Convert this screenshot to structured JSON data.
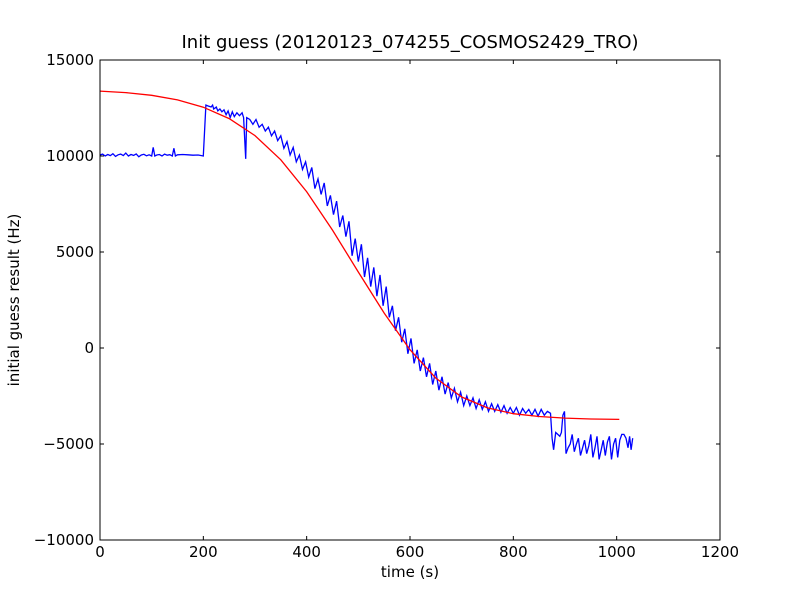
{
  "chart_data": {
    "type": "line",
    "title": "Init guess (20120123_074255_COSMOS2429_TRO)",
    "xlabel": "time (s)",
    "ylabel": "initial guess result (Hz)",
    "xlim": [
      0,
      1200
    ],
    "ylim": [
      -10000,
      15000
    ],
    "xticks": [
      0,
      200,
      400,
      600,
      800,
      1000,
      1200
    ],
    "yticks": [
      -10000,
      -5000,
      0,
      5000,
      10000,
      15000
    ],
    "xtick_labels": [
      "0",
      "200",
      "400",
      "600",
      "800",
      "1000",
      "1200"
    ],
    "ytick_labels": [
      "−10000",
      "−5000",
      "0",
      "5000",
      "10000",
      "15000"
    ],
    "grid": false,
    "series": [
      {
        "color": "#0000ff",
        "points": [
          [
            0,
            10050
          ],
          [
            5,
            10100
          ],
          [
            10,
            10000
          ],
          [
            15,
            10080
          ],
          [
            20,
            10020
          ],
          [
            25,
            10120
          ],
          [
            30,
            9980
          ],
          [
            35,
            10060
          ],
          [
            40,
            10100
          ],
          [
            45,
            10020
          ],
          [
            50,
            10150
          ],
          [
            55,
            10000
          ],
          [
            60,
            10080
          ],
          [
            65,
            10030
          ],
          [
            70,
            10110
          ],
          [
            75,
            9960
          ],
          [
            80,
            10050
          ],
          [
            85,
            10090
          ],
          [
            90,
            10010
          ],
          [
            95,
            10060
          ],
          [
            100,
            10000
          ],
          [
            103,
            10450
          ],
          [
            106,
            10000
          ],
          [
            110,
            10050
          ],
          [
            115,
            10080
          ],
          [
            120,
            10000
          ],
          [
            125,
            10100
          ],
          [
            130,
            10040
          ],
          [
            135,
            10070
          ],
          [
            140,
            10000
          ],
          [
            143,
            10400
          ],
          [
            146,
            10000
          ],
          [
            150,
            10060
          ],
          [
            160,
            10080
          ],
          [
            170,
            10060
          ],
          [
            180,
            10040
          ],
          [
            190,
            10050
          ],
          [
            200,
            10000
          ],
          [
            205,
            12650
          ],
          [
            210,
            12600
          ],
          [
            215,
            12550
          ],
          [
            218,
            12650
          ],
          [
            220,
            12450
          ],
          [
            225,
            12550
          ],
          [
            228,
            12350
          ],
          [
            232,
            12450
          ],
          [
            236,
            12300
          ],
          [
            240,
            12400
          ],
          [
            244,
            12150
          ],
          [
            248,
            12350
          ],
          [
            252,
            12000
          ],
          [
            256,
            12300
          ],
          [
            260,
            12050
          ],
          [
            265,
            12250
          ],
          [
            270,
            12100
          ],
          [
            275,
            12250
          ],
          [
            278,
            12000
          ],
          [
            282,
            9850
          ],
          [
            284,
            12000
          ],
          [
            290,
            11900
          ],
          [
            296,
            11650
          ],
          [
            302,
            11900
          ],
          [
            308,
            11500
          ],
          [
            314,
            11650
          ],
          [
            320,
            11300
          ],
          [
            326,
            11500
          ],
          [
            332,
            11050
          ],
          [
            338,
            11300
          ],
          [
            344,
            10800
          ],
          [
            350,
            11050
          ],
          [
            356,
            10400
          ],
          [
            362,
            10750
          ],
          [
            368,
            10050
          ],
          [
            374,
            10450
          ],
          [
            380,
            9700
          ],
          [
            386,
            10050
          ],
          [
            392,
            9300
          ],
          [
            398,
            9700
          ],
          [
            404,
            8900
          ],
          [
            410,
            9400
          ],
          [
            416,
            8300
          ],
          [
            422,
            8800
          ],
          [
            428,
            8000
          ],
          [
            434,
            8600
          ],
          [
            440,
            7400
          ],
          [
            446,
            7950
          ],
          [
            452,
            6950
          ],
          [
            458,
            7650
          ],
          [
            464,
            6300
          ],
          [
            470,
            6900
          ],
          [
            476,
            5800
          ],
          [
            482,
            6600
          ],
          [
            488,
            4800
          ],
          [
            494,
            5700
          ],
          [
            500,
            4500
          ],
          [
            506,
            5400
          ],
          [
            512,
            3700
          ],
          [
            518,
            4700
          ],
          [
            524,
            3200
          ],
          [
            530,
            4200
          ],
          [
            536,
            2700
          ],
          [
            542,
            3800
          ],
          [
            548,
            2200
          ],
          [
            554,
            3200
          ],
          [
            560,
            1600
          ],
          [
            566,
            2200
          ],
          [
            572,
            900
          ],
          [
            578,
            1600
          ],
          [
            584,
            300
          ],
          [
            590,
            1000
          ],
          [
            596,
            -300
          ],
          [
            602,
            500
          ],
          [
            608,
            -800
          ],
          [
            614,
            -100
          ],
          [
            620,
            -1200
          ],
          [
            626,
            -500
          ],
          [
            632,
            -1500
          ],
          [
            638,
            -800
          ],
          [
            644,
            -1900
          ],
          [
            650,
            -1200
          ],
          [
            656,
            -2200
          ],
          [
            662,
            -1500
          ],
          [
            668,
            -2400
          ],
          [
            674,
            -1800
          ],
          [
            680,
            -2600
          ],
          [
            686,
            -2100
          ],
          [
            692,
            -2800
          ],
          [
            698,
            -2300
          ],
          [
            704,
            -3000
          ],
          [
            710,
            -2500
          ],
          [
            716,
            -3000
          ],
          [
            722,
            -2600
          ],
          [
            728,
            -3150
          ],
          [
            734,
            -2700
          ],
          [
            740,
            -3200
          ],
          [
            746,
            -2800
          ],
          [
            752,
            -3300
          ],
          [
            758,
            -2900
          ],
          [
            764,
            -3300
          ],
          [
            770,
            -2950
          ],
          [
            776,
            -3350
          ],
          [
            782,
            -3000
          ],
          [
            788,
            -3400
          ],
          [
            794,
            -3100
          ],
          [
            800,
            -3400
          ],
          [
            806,
            -3100
          ],
          [
            812,
            -3500
          ],
          [
            818,
            -3150
          ],
          [
            824,
            -3400
          ],
          [
            830,
            -3200
          ],
          [
            836,
            -3500
          ],
          [
            842,
            -3200
          ],
          [
            848,
            -3550
          ],
          [
            854,
            -3200
          ],
          [
            860,
            -3500
          ],
          [
            866,
            -3300
          ],
          [
            872,
            -3400
          ],
          [
            875,
            -4700
          ],
          [
            878,
            -5300
          ],
          [
            882,
            -4400
          ],
          [
            886,
            -4500
          ],
          [
            890,
            -4600
          ],
          [
            893,
            -4400
          ],
          [
            896,
            -3500
          ],
          [
            899,
            -3300
          ],
          [
            902,
            -5500
          ],
          [
            906,
            -5200
          ],
          [
            910,
            -5000
          ],
          [
            914,
            -4500
          ],
          [
            918,
            -5400
          ],
          [
            922,
            -5000
          ],
          [
            926,
            -4700
          ],
          [
            930,
            -5600
          ],
          [
            934,
            -5200
          ],
          [
            938,
            -4800
          ],
          [
            942,
            -5500
          ],
          [
            946,
            -5100
          ],
          [
            950,
            -4500
          ],
          [
            954,
            -5700
          ],
          [
            958,
            -5200
          ],
          [
            962,
            -4600
          ],
          [
            966,
            -5800
          ],
          [
            970,
            -5300
          ],
          [
            974,
            -4800
          ],
          [
            978,
            -5600
          ],
          [
            982,
            -4900
          ],
          [
            986,
            -4600
          ],
          [
            990,
            -5800
          ],
          [
            994,
            -5000
          ],
          [
            998,
            -4700
          ],
          [
            1002,
            -5700
          ],
          [
            1006,
            -4800
          ],
          [
            1010,
            -4500
          ],
          [
            1014,
            -4500
          ],
          [
            1018,
            -4700
          ],
          [
            1022,
            -5200
          ],
          [
            1025,
            -4600
          ],
          [
            1028,
            -5300
          ],
          [
            1031,
            -4700
          ]
        ]
      },
      {
        "color": "#ff0000",
        "points": [
          [
            0,
            13380
          ],
          [
            50,
            13300
          ],
          [
            100,
            13160
          ],
          [
            150,
            12920
          ],
          [
            200,
            12540
          ],
          [
            250,
            11950
          ],
          [
            300,
            11060
          ],
          [
            350,
            9800
          ],
          [
            400,
            8140
          ],
          [
            450,
            6140
          ],
          [
            500,
            3960
          ],
          [
            550,
            1820
          ],
          [
            600,
            -90
          ],
          [
            650,
            -1570
          ],
          [
            700,
            -2550
          ],
          [
            750,
            -3120
          ],
          [
            800,
            -3420
          ],
          [
            850,
            -3570
          ],
          [
            900,
            -3650
          ],
          [
            950,
            -3700
          ],
          [
            1005,
            -3720
          ]
        ]
      }
    ]
  }
}
